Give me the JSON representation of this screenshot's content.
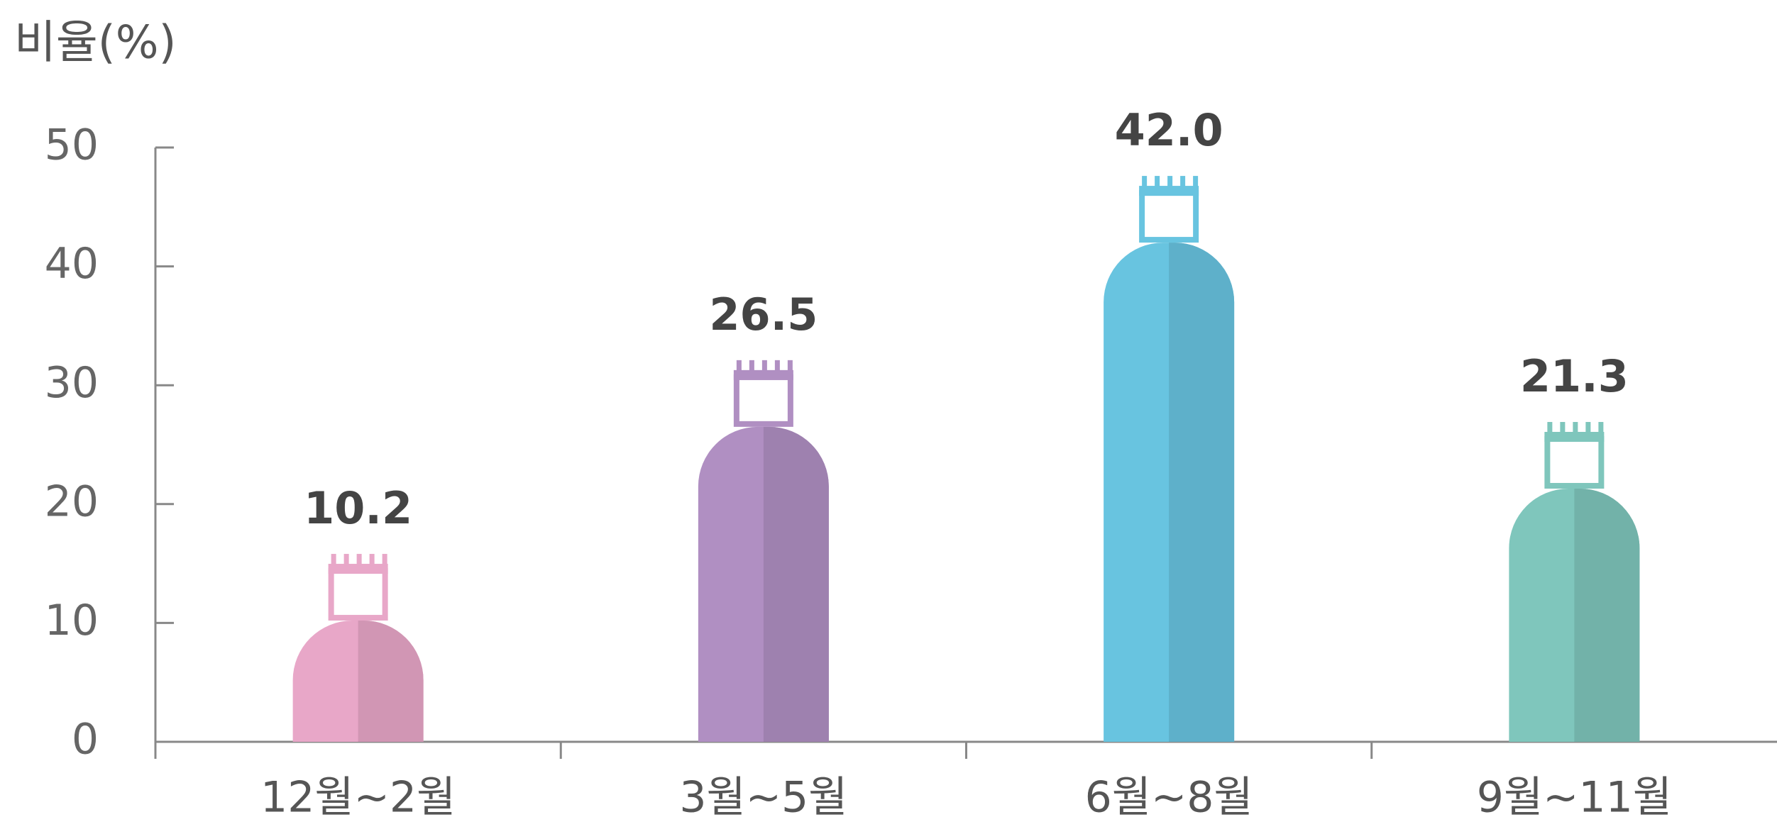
{
  "chart_data": {
    "type": "bar",
    "y_label": "비율(%)",
    "categories": [
      "12월~2월",
      "3월~5월",
      "6월~8월",
      "9월~11월"
    ],
    "values": [
      10.2,
      26.5,
      42.0,
      21.3
    ],
    "value_labels": [
      "10.2",
      "26.5",
      "42.0",
      "21.3"
    ],
    "colors": [
      "#e8a7c8",
      "#b08fc2",
      "#68c4e0",
      "#7fc6bc"
    ],
    "ylim": [
      0,
      50
    ],
    "yticks": [
      0,
      10,
      20,
      30,
      40,
      50
    ]
  }
}
